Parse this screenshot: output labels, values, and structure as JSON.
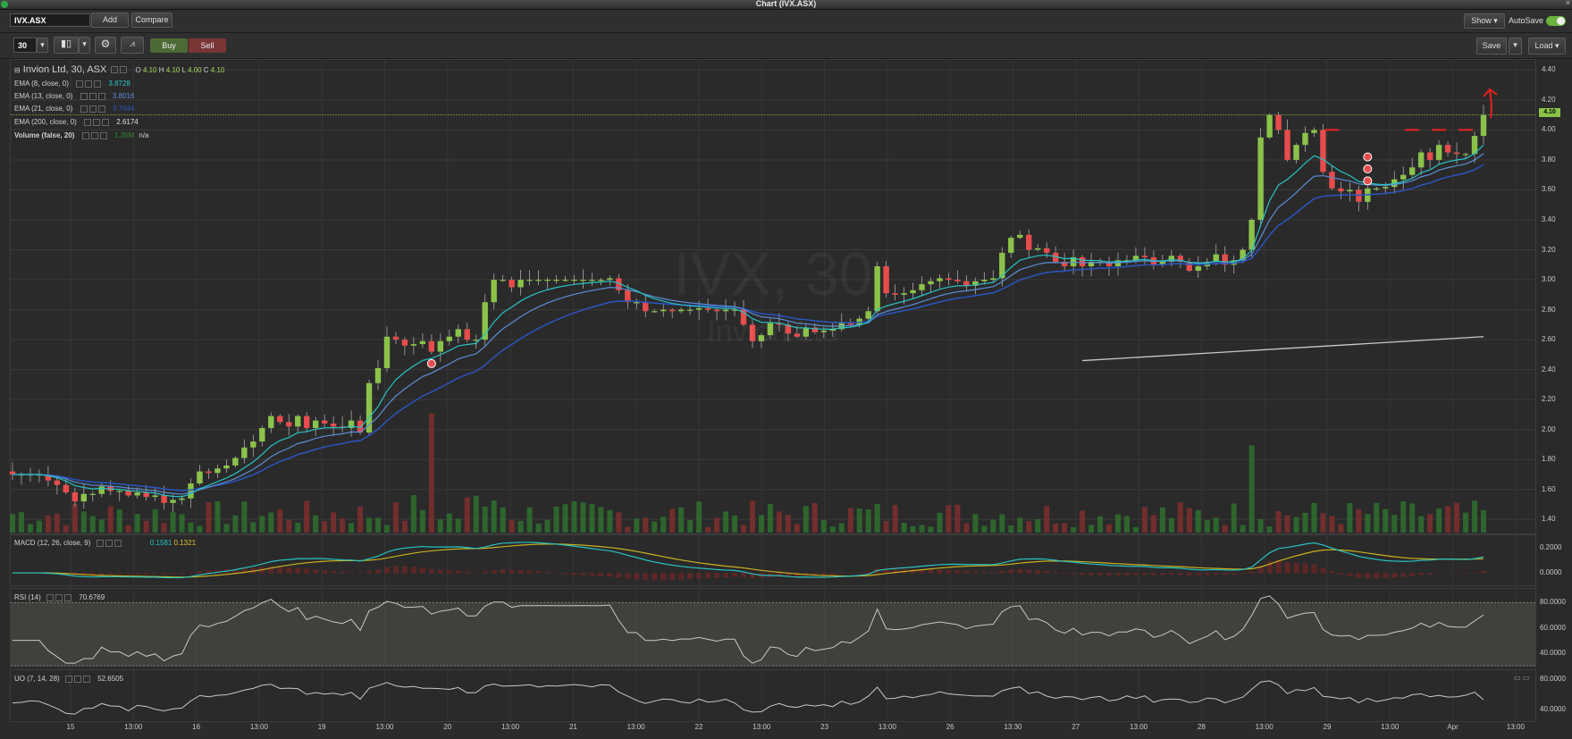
{
  "window": {
    "title": "Chart (IVX.ASX)"
  },
  "topbar": {
    "symbol_value": "IVX.ASX",
    "add_label": "Add",
    "compare_label": "Compare",
    "show_label": "Show",
    "autosave_label": "AutoSave"
  },
  "toolbar": {
    "interval_value": "30",
    "buy_label": "Buy",
    "sell_label": "Sell",
    "save_label": "Save",
    "load_label": "Load"
  },
  "colors": {
    "bull": "#8bc34a",
    "bear": "#e84c4c",
    "ema8": "#28c3c3",
    "ema13": "#5b8ed6",
    "ema21": "#2a55c0",
    "ema200": "#c8c8c8",
    "macd": "#28c3c3",
    "signal": "#c8b020"
  },
  "watermark": {
    "symbol": "IVX, 30",
    "name": "Invion Ltd"
  },
  "price_panel": {
    "heading": "Invion Ltd, 30, ASX",
    "ohlc": {
      "o_label": "O",
      "o": "4.10",
      "h_label": "H",
      "h": "4.10",
      "l_label": "L",
      "l": "4.00",
      "c_label": "C",
      "c": "4.10"
    },
    "studies": [
      {
        "label": "EMA (8, close, 0)",
        "value": "3.8728"
      },
      {
        "label": "EMA (13, close, 0)",
        "value": "3.8016"
      },
      {
        "label": "EMA (21, close, 0)",
        "value": "3.7044"
      },
      {
        "label": "EMA (200, close, 0)",
        "value": "2.6174"
      },
      {
        "label": "Volume (false, 20)",
        "value": "1.35M",
        "extra": "n/a"
      }
    ],
    "last_price_tag": "4.10"
  },
  "macd_panel": {
    "label": "MACD (12, 26, close, 9)",
    "macd_value": "0.1581",
    "signal_value": "0.1321"
  },
  "rsi_panel": {
    "label": "RSI (14)",
    "value": "70.6769"
  },
  "uo_panel": {
    "label": "UO (7, 14, 28)",
    "value": "52.6505"
  },
  "chart_data": [
    {
      "type": "candlestick",
      "title": "Invion Ltd, 30, ASX",
      "y_ticks": [
        "4.40",
        "4.20",
        "4.00",
        "3.80",
        "3.60",
        "3.40",
        "3.20",
        "3.00",
        "2.80",
        "2.60",
        "2.40",
        "2.20",
        "2.00",
        "1.80",
        "1.60",
        "1.40"
      ],
      "ylim": [
        1.3,
        4.45
      ],
      "x_ticks": [
        "15",
        "13:00",
        "16",
        "13:00",
        "19",
        "13:00",
        "20",
        "13:00",
        "21",
        "13:00",
        "22",
        "13:00",
        "23",
        "13:00",
        "26",
        "13:30",
        "27",
        "13:00",
        "28",
        "13:00",
        "29",
        "13:00",
        "Apr",
        "13:00"
      ],
      "close": [
        1.7,
        1.7,
        1.7,
        1.7,
        1.66,
        1.63,
        1.58,
        1.52,
        1.57,
        1.57,
        1.62,
        1.59,
        1.59,
        1.56,
        1.58,
        1.55,
        1.56,
        1.51,
        1.53,
        1.54,
        1.64,
        1.72,
        1.71,
        1.74,
        1.76,
        1.81,
        1.88,
        1.92,
        2.01,
        2.09,
        2.05,
        2.02,
        2.09,
        2.01,
        2.06,
        2.04,
        2.02,
        2.01,
        2.06,
        1.98,
        2.31,
        2.41,
        2.62,
        2.6,
        2.56,
        2.57,
        2.59,
        2.52,
        2.59,
        2.62,
        2.67,
        2.6,
        2.6,
        2.85,
        3.0,
        3.0,
        2.95,
        3.0,
        3.0,
        3.0,
        3.0,
        3.0,
        3.0,
        3.0,
        3.0,
        3.0,
        3.0,
        3.01,
        2.93,
        2.85,
        2.85,
        2.79,
        2.79,
        2.8,
        2.79,
        2.8,
        2.8,
        2.81,
        2.8,
        2.79,
        2.8,
        2.8,
        2.7,
        2.59,
        2.63,
        2.71,
        2.7,
        2.64,
        2.62,
        2.68,
        2.65,
        2.66,
        2.67,
        2.71,
        2.7,
        2.74,
        2.79,
        3.09,
        2.91,
        2.9,
        2.91,
        2.93,
        2.97,
        2.99,
        3.01,
        3.0,
        2.99,
        2.96,
        2.99,
        3.0,
        3.01,
        3.18,
        3.28,
        3.3,
        3.2,
        3.21,
        3.18,
        3.12,
        3.09,
        3.15,
        3.09,
        3.12,
        3.12,
        3.09,
        3.13,
        3.13,
        3.16,
        3.15,
        3.1,
        3.12,
        3.16,
        3.12,
        3.06,
        3.09,
        3.12,
        3.17,
        3.1,
        3.13,
        3.2,
        3.4,
        3.95,
        4.1,
        4.0,
        3.8,
        3.9,
        3.98,
        4.0,
        3.72,
        3.61,
        3.59,
        3.6,
        3.52,
        3.61,
        3.61,
        3.62,
        3.67,
        3.7,
        3.75,
        3.85,
        3.8,
        3.9,
        3.85,
        3.84,
        3.84,
        3.96,
        4.1
      ],
      "ema_200": {
        "start_index": 120,
        "start_value": 2.46,
        "end_value": 2.62
      },
      "annotation": {
        "type": "arrow",
        "color": "#e82020",
        "direction": "up"
      }
    },
    {
      "type": "bar",
      "title": "Volume (false, 20)",
      "note": "volume histogram in price pane"
    },
    {
      "type": "line",
      "title": "MACD (12, 26, close, 9)",
      "y_ticks": [
        "0.2000",
        "0.0000"
      ],
      "ylim": [
        -0.1,
        0.28
      ],
      "last": {
        "macd": 0.1581,
        "signal": 0.1321
      }
    },
    {
      "type": "line",
      "title": "RSI (14)",
      "y_ticks": [
        "80.0000",
        "60.0000",
        "40.0000"
      ],
      "ylim": [
        30,
        90
      ],
      "last": 70.6769
    },
    {
      "type": "line",
      "title": "UO (7, 14, 28)",
      "y_ticks": [
        "80.0000",
        "40.0000"
      ],
      "ylim": [
        25,
        90
      ],
      "last": 52.6505
    }
  ]
}
